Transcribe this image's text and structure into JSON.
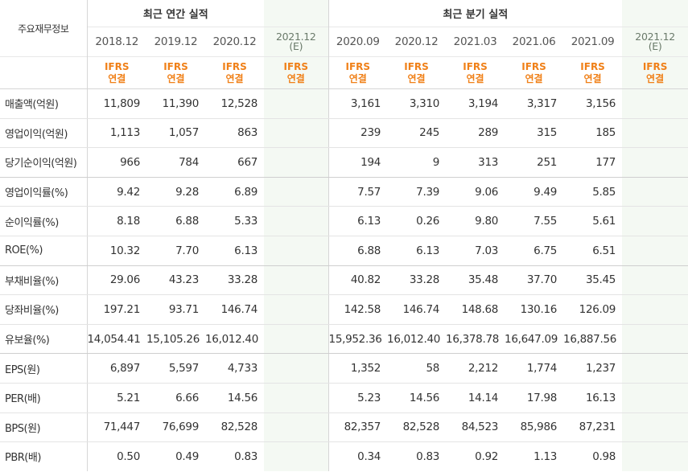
{
  "header": {
    "corner": "주요재무정보",
    "annual_title": "최근 연간 실적",
    "quarter_title": "최근 분기 실적"
  },
  "periods": {
    "annual": [
      "2018.12",
      "2019.12",
      "2020.12",
      "2021.12"
    ],
    "annual_est_suffix": "(E)",
    "quarter": [
      "2020.09",
      "2020.12",
      "2021.03",
      "2021.06",
      "2021.09",
      "2021.12"
    ],
    "quarter_est_suffix": "(E)"
  },
  "ifrs": {
    "line1": "IFRS",
    "line2": "연결"
  },
  "rows": [
    {
      "label": "매출액(억원)",
      "annual": [
        "11,809",
        "11,390",
        "12,528",
        ""
      ],
      "quarter": [
        "3,161",
        "3,310",
        "3,194",
        "3,317",
        "3,156",
        ""
      ]
    },
    {
      "label": "영업이익(억원)",
      "annual": [
        "1,113",
        "1,057",
        "863",
        ""
      ],
      "quarter": [
        "239",
        "245",
        "289",
        "315",
        "185",
        ""
      ]
    },
    {
      "label": "당기순이익(억원)",
      "annual": [
        "966",
        "784",
        "667",
        ""
      ],
      "quarter": [
        "194",
        "9",
        "313",
        "251",
        "177",
        ""
      ]
    },
    {
      "label": "영업이익률(%)",
      "annual": [
        "9.42",
        "9.28",
        "6.89",
        ""
      ],
      "quarter": [
        "7.57",
        "7.39",
        "9.06",
        "9.49",
        "5.85",
        ""
      ]
    },
    {
      "label": "순이익률(%)",
      "annual": [
        "8.18",
        "6.88",
        "5.33",
        ""
      ],
      "quarter": [
        "6.13",
        "0.26",
        "9.80",
        "7.55",
        "5.61",
        ""
      ]
    },
    {
      "label": "ROE(%)",
      "annual": [
        "10.32",
        "7.70",
        "6.13",
        ""
      ],
      "quarter": [
        "6.88",
        "6.13",
        "7.03",
        "6.75",
        "6.51",
        ""
      ]
    },
    {
      "label": "부채비율(%)",
      "annual": [
        "29.06",
        "43.23",
        "33.28",
        ""
      ],
      "quarter": [
        "40.82",
        "33.28",
        "35.48",
        "37.70",
        "35.45",
        ""
      ]
    },
    {
      "label": "당좌비율(%)",
      "annual": [
        "197.21",
        "93.71",
        "146.74",
        ""
      ],
      "quarter": [
        "142.58",
        "146.74",
        "148.68",
        "130.16",
        "126.09",
        ""
      ]
    },
    {
      "label": "유보율(%)",
      "annual": [
        "14,054.41",
        "15,105.26",
        "16,012.40",
        ""
      ],
      "quarter": [
        "15,952.36",
        "16,012.40",
        "16,378.78",
        "16,647.09",
        "16,887.56",
        ""
      ]
    },
    {
      "label": "EPS(원)",
      "annual": [
        "6,897",
        "5,597",
        "4,733",
        ""
      ],
      "quarter": [
        "1,352",
        "58",
        "2,212",
        "1,774",
        "1,237",
        ""
      ]
    },
    {
      "label": "PER(배)",
      "annual": [
        "5.21",
        "6.66",
        "14.56",
        ""
      ],
      "quarter": [
        "5.23",
        "14.56",
        "14.14",
        "17.98",
        "16.13",
        ""
      ]
    },
    {
      "label": "BPS(원)",
      "annual": [
        "71,447",
        "76,699",
        "82,528",
        ""
      ],
      "quarter": [
        "82,357",
        "82,528",
        "84,523",
        "85,986",
        "87,231",
        ""
      ]
    },
    {
      "label": "PBR(배)",
      "annual": [
        "0.50",
        "0.49",
        "0.83",
        ""
      ],
      "quarter": [
        "0.34",
        "0.83",
        "0.92",
        "1.13",
        "0.98",
        ""
      ]
    }
  ],
  "colors": {
    "ifrs": "#f08018",
    "estimate_bg": "#f4f9f3"
  }
}
